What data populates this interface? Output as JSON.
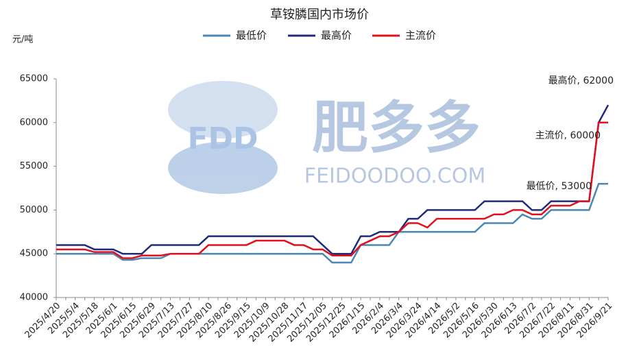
{
  "chart_data": {
    "type": "line",
    "title": "草铵膦国内市场价",
    "y_unit": "元/吨",
    "watermark": {
      "logo": "FDD",
      "name": "肥多多",
      "url": "FEIDOODOO.COM"
    },
    "categories": [
      "2025/4/20",
      null,
      "2025/5/4",
      null,
      "2025/5/18",
      null,
      "2025/6/1",
      null,
      "2025/6/15",
      null,
      "2025/6/29",
      null,
      "2025/7/13",
      null,
      "2025/7/27",
      null,
      "2025/8/10",
      null,
      "2025/8/26",
      null,
      "2025/9/15",
      null,
      "2025/10/9",
      null,
      "2025/10/28",
      null,
      "2025/11/17",
      null,
      "2025/12/05",
      null,
      "2025/12/25",
      null,
      "2026/1/15",
      null,
      "2026/2/4",
      null,
      "2026/3/4",
      null,
      "2026/3/24",
      null,
      "2026/4/14",
      null,
      "2026/5/2",
      null,
      "2026/5/16",
      null,
      "2026/5/30",
      null,
      "2026/6/13",
      null,
      "2026/7/2",
      null,
      "2026/7/22",
      null,
      "2026/8/11",
      null,
      "2026/8/31",
      null,
      "2026/9/21"
    ],
    "series": [
      {
        "name": "最低价",
        "color": "#4a86b4",
        "values": [
          45000,
          45000,
          45000,
          45000,
          45000,
          45000,
          45000,
          44300,
          44300,
          44500,
          44500,
          44500,
          45000,
          45000,
          45000,
          45000,
          45000,
          45000,
          45000,
          45000,
          45000,
          45000,
          45000,
          45000,
          45000,
          45000,
          45000,
          45000,
          45000,
          44000,
          44000,
          44000,
          46000,
          46000,
          46000,
          46000,
          47500,
          47500,
          47500,
          47500,
          47500,
          47500,
          47500,
          47500,
          47500,
          48500,
          48500,
          48500,
          48500,
          49500,
          49000,
          49000,
          50000,
          50000,
          50000,
          50000,
          50000,
          53000,
          53000
        ]
      },
      {
        "name": "最高价",
        "color": "#1f2a7c",
        "values": [
          46000,
          46000,
          46000,
          46000,
          45500,
          45500,
          45500,
          45000,
          45000,
          45000,
          46000,
          46000,
          46000,
          46000,
          46000,
          46000,
          47000,
          47000,
          47000,
          47000,
          47000,
          47000,
          47000,
          47000,
          47000,
          47000,
          47000,
          47000,
          46000,
          45000,
          45000,
          45000,
          47000,
          47000,
          47500,
          47500,
          47500,
          49000,
          49000,
          50000,
          50000,
          50000,
          50000,
          50000,
          50000,
          51000,
          51000,
          51000,
          51000,
          51000,
          50000,
          50000,
          51000,
          51000,
          51000,
          51000,
          51000,
          60000,
          62000
        ]
      },
      {
        "name": "主流价",
        "color": "#e0101c",
        "values": [
          45500,
          45500,
          45500,
          45500,
          45200,
          45200,
          45200,
          44500,
          44500,
          44800,
          44800,
          44800,
          45000,
          45000,
          45000,
          45000,
          46000,
          46000,
          46000,
          46000,
          46000,
          46500,
          46500,
          46500,
          46500,
          46000,
          46000,
          45500,
          45500,
          44800,
          44800,
          44800,
          46000,
          46500,
          47000,
          47000,
          47500,
          48500,
          48500,
          48000,
          49000,
          49000,
          49000,
          49000,
          49000,
          49000,
          49500,
          49500,
          50000,
          50000,
          49500,
          49500,
          50500,
          50500,
          50500,
          51000,
          51000,
          60000,
          60000
        ]
      }
    ],
    "annotations": [
      "最高价, 62000",
      "主流价, 60000",
      "最低价, 53000"
    ],
    "ylim": [
      40000,
      65000
    ],
    "yticks": [
      40000,
      45000,
      50000,
      55000,
      60000,
      65000
    ],
    "grid": false
  }
}
